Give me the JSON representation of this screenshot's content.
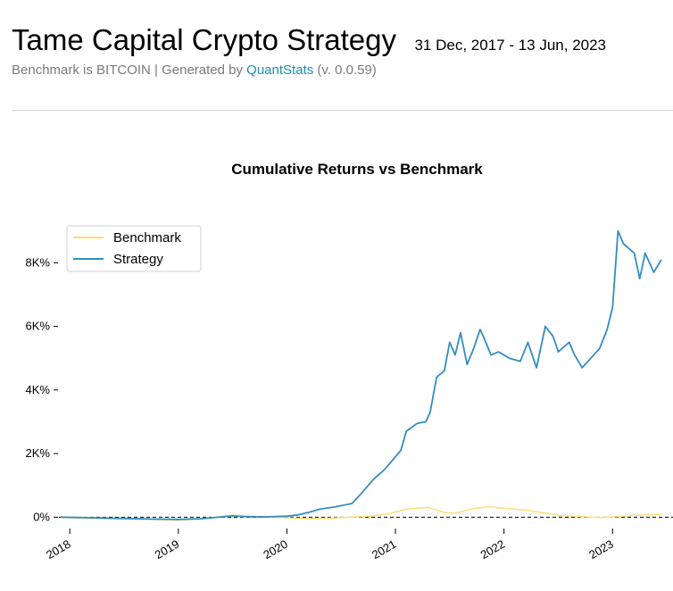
{
  "header": {
    "title": "Tame Capital Crypto Strategy",
    "date_range": "31 Dec, 2017 - 13 Jun, 2023",
    "subtitle_prefix": "Benchmark is BITCOIN | Generated by ",
    "subtitle_link": "QuantStats",
    "subtitle_suffix": " (v. 0.0.59)"
  },
  "colors": {
    "strategy": "#348dc1",
    "benchmark": "#fedd78",
    "zero_line": "#000000"
  },
  "chart_data": {
    "type": "line",
    "title": "Cumulative Returns vs Benchmark",
    "xlabel": "",
    "ylabel": "",
    "xlim": [
      2017.9,
      2023.45
    ],
    "ylim": [
      -300,
      9300
    ],
    "yticks": [
      0,
      2000,
      4000,
      6000,
      8000
    ],
    "ytick_labels": [
      "0%",
      "2K%",
      "4K%",
      "6K%",
      "8K%"
    ],
    "xticks": [
      2018,
      2019,
      2020,
      2021,
      2022,
      2023
    ],
    "xtick_labels": [
      "2018",
      "2019",
      "2020",
      "2021",
      "2022",
      "2023"
    ],
    "grid": false,
    "zero_line": true,
    "legend_position": "top-left",
    "series": [
      {
        "name": "Benchmark",
        "x": [
          2017.92,
          2018.1,
          2018.3,
          2018.5,
          2018.7,
          2018.9,
          2019.0,
          2019.2,
          2019.4,
          2019.5,
          2019.6,
          2019.8,
          2020.0,
          2020.2,
          2020.4,
          2020.6,
          2020.8,
          2020.95,
          2021.1,
          2021.3,
          2021.45,
          2021.55,
          2021.7,
          2021.85,
          2022.0,
          2022.2,
          2022.4,
          2022.5,
          2022.7,
          2022.9,
          2023.0,
          2023.2,
          2023.45
        ],
        "values": [
          0,
          -30,
          -50,
          -60,
          -70,
          -80,
          -90,
          -60,
          20,
          60,
          40,
          10,
          -20,
          -50,
          -30,
          0,
          40,
          120,
          250,
          310,
          150,
          120,
          260,
          330,
          280,
          220,
          120,
          50,
          20,
          -10,
          10,
          60,
          80
        ]
      },
      {
        "name": "Strategy",
        "x": [
          2017.92,
          2018.2,
          2018.5,
          2018.8,
          2019.0,
          2019.2,
          2019.4,
          2019.5,
          2019.6,
          2019.8,
          2020.0,
          2020.1,
          2020.2,
          2020.3,
          2020.45,
          2020.6,
          2020.7,
          2020.8,
          2020.9,
          2021.0,
          2021.05,
          2021.1,
          2021.2,
          2021.28,
          2021.32,
          2021.38,
          2021.45,
          2021.5,
          2021.55,
          2021.6,
          2021.66,
          2021.72,
          2021.78,
          2021.82,
          2021.88,
          2021.95,
          2022.05,
          2022.15,
          2022.22,
          2022.3,
          2022.38,
          2022.45,
          2022.5,
          2022.6,
          2022.65,
          2022.72,
          2022.8,
          2022.88,
          2022.95,
          2023.0,
          2023.05,
          2023.1,
          2023.2,
          2023.25,
          2023.3,
          2023.38,
          2023.45
        ],
        "values": [
          0,
          -20,
          -40,
          -60,
          -70,
          -50,
          10,
          40,
          20,
          10,
          30,
          70,
          150,
          250,
          330,
          430,
          800,
          1200,
          1500,
          1900,
          2100,
          2700,
          2950,
          3000,
          3300,
          4400,
          4600,
          5500,
          5100,
          5800,
          4800,
          5300,
          5900,
          5600,
          5100,
          5200,
          5000,
          4900,
          5500,
          4700,
          6000,
          5700,
          5200,
          5500,
          5100,
          4700,
          5000,
          5300,
          5900,
          6600,
          9000,
          8600,
          8300,
          7500,
          8300,
          7700,
          8100
        ]
      }
    ]
  }
}
